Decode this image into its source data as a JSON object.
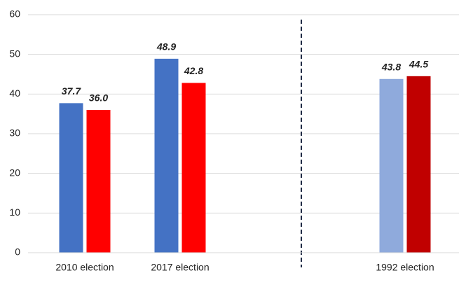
{
  "chart_data": {
    "type": "bar",
    "categories": [
      "2010 election",
      "2017 election",
      null,
      "1992 election"
    ],
    "series": [
      {
        "colors": [
          "#4472c4",
          "#4472c4",
          null,
          "#8faadc"
        ],
        "values": [
          37.7,
          48.9,
          null,
          43.8
        ],
        "value_labels": [
          "37.7",
          "48.9",
          null,
          "43.8"
        ]
      },
      {
        "colors": [
          "#ff0000",
          "#ff0000",
          null,
          "#c00000"
        ],
        "values": [
          36.0,
          42.8,
          null,
          44.5
        ],
        "value_labels": [
          "36.0",
          "42.8",
          null,
          "44.5"
        ]
      }
    ],
    "ylim": [
      0,
      60
    ],
    "yticks": [
      0,
      10,
      20,
      30,
      40,
      50,
      60
    ],
    "grid": true
  }
}
